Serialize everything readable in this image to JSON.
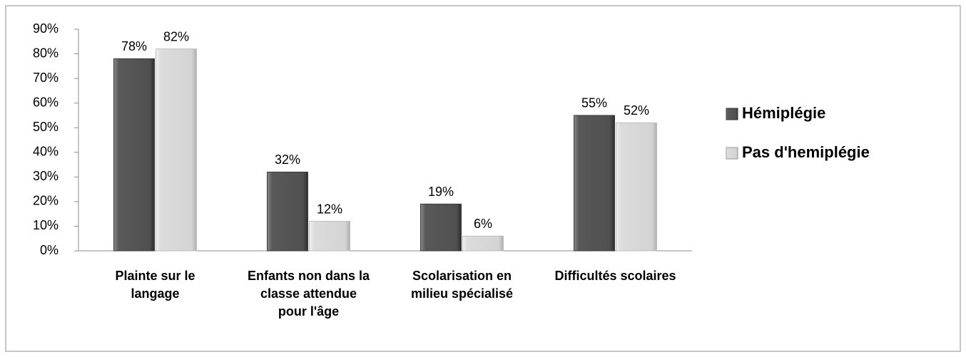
{
  "chart_data": {
    "type": "bar",
    "categories": [
      "Plainte sur le langage",
      "Enfants non dans la classe attendue pour l'âge",
      "Scolarisation en milieu spécialisé",
      "Difficultés scolaires"
    ],
    "series": [
      {
        "name": "Hémiplégie",
        "color": "#595959",
        "values": [
          78,
          32,
          19,
          55
        ],
        "value_labels": [
          "78%",
          "32%",
          "19%",
          "55%"
        ]
      },
      {
        "name": "Pas d'hemiplégie",
        "color": "#d9d9d9",
        "values": [
          82,
          12,
          6,
          52
        ],
        "value_labels": [
          "82%",
          "12%",
          "6%",
          "52%"
        ]
      }
    ],
    "ylim": [
      0,
      90
    ],
    "yticks": [
      {
        "value": 0,
        "label": "0%"
      },
      {
        "value": 10,
        "label": "10%"
      },
      {
        "value": 20,
        "label": "20%"
      },
      {
        "value": 30,
        "label": "30%"
      },
      {
        "value": 40,
        "label": "40%"
      },
      {
        "value": 50,
        "label": "50%"
      },
      {
        "value": 60,
        "label": "60%"
      },
      {
        "value": 70,
        "label": "70%"
      },
      {
        "value": 80,
        "label": "80%"
      },
      {
        "value": 90,
        "label": "90%"
      }
    ],
    "legend": "right"
  }
}
